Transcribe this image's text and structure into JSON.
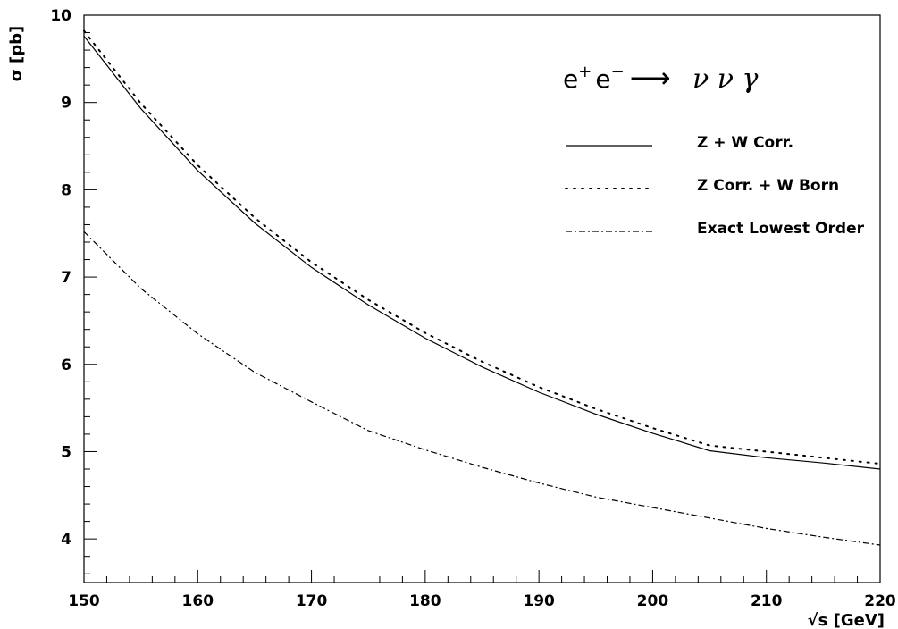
{
  "chart_data": {
    "type": "line",
    "title": "",
    "annotation": {
      "lhs_e1": "e",
      "lhs_plus": "+",
      "lhs_e2": "e",
      "lhs_minus": "−",
      "arrow": "⟶",
      "rhs": "ν ν γ"
    },
    "xlabel": "√s [GeV]",
    "ylabel": "σ [pb]",
    "xlim": [
      150,
      220
    ],
    "ylim": [
      3.5,
      10
    ],
    "xticks": [
      150,
      160,
      170,
      180,
      190,
      200,
      210,
      220
    ],
    "yticks": [
      4,
      5,
      6,
      7,
      8,
      9,
      10
    ],
    "grid": false,
    "legend_position": "top-right",
    "x": [
      150,
      155,
      160,
      165,
      170,
      175,
      180,
      185,
      190,
      195,
      200,
      205,
      210,
      215,
      220
    ],
    "series": [
      {
        "name": "Z + W Corr.",
        "style": "solid",
        "values": [
          9.76,
          8.93,
          8.22,
          7.62,
          7.11,
          6.68,
          6.3,
          5.97,
          5.68,
          5.43,
          5.21,
          5.01,
          4.93,
          4.87,
          4.8
        ]
      },
      {
        "name": "Z Corr. + W Born",
        "style": "dotted",
        "values": [
          9.82,
          8.99,
          8.28,
          7.68,
          7.17,
          6.74,
          6.36,
          6.03,
          5.74,
          5.49,
          5.27,
          5.07,
          5.0,
          4.93,
          4.86
        ]
      },
      {
        "name": "Exact Lowest Order",
        "style": "dashdot",
        "values": [
          7.52,
          6.87,
          6.35,
          5.91,
          5.57,
          5.24,
          5.02,
          4.82,
          4.64,
          4.48,
          4.36,
          4.24,
          4.12,
          4.02,
          3.93
        ]
      }
    ]
  },
  "colors": {
    "line": "#000000",
    "background": "#ffffff"
  }
}
